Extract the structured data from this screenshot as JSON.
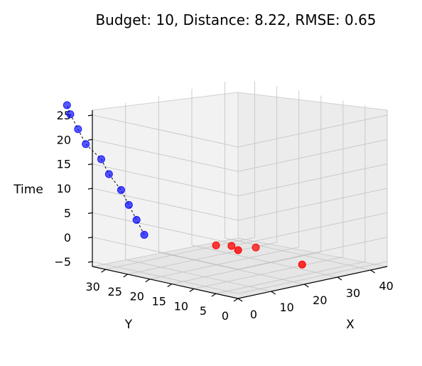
{
  "chart_data": {
    "type": "scatter",
    "title": "Budget: 10, Distance: 8.22, RMSE: 0.65",
    "xlabel": "X",
    "ylabel": "Y",
    "zlabel": "Time",
    "xticks": [
      "0",
      "10",
      "20",
      "30",
      "40"
    ],
    "yticks": [
      "0",
      "5",
      "10",
      "15",
      "20",
      "25",
      "30"
    ],
    "zticks": [
      "−5",
      "0",
      "5",
      "10",
      "15",
      "20",
      "25"
    ],
    "grid": true,
    "series": [
      {
        "color": "#0000ff",
        "style": "markers connected by dashed black line",
        "points": [
          {
            "x": 13,
            "y": 31,
            "time": -1
          },
          {
            "x": 12,
            "y": 32,
            "time": 2
          },
          {
            "x": 11,
            "y": 33,
            "time": 5
          },
          {
            "x": 10,
            "y": 34,
            "time": 8
          },
          {
            "x": 9,
            "y": 36,
            "time": 11
          },
          {
            "x": 8,
            "y": 37,
            "time": 14
          },
          {
            "x": 6,
            "y": 39,
            "time": 17
          },
          {
            "x": 5,
            "y": 40,
            "time": 20
          },
          {
            "x": 4,
            "y": 41,
            "time": 23
          },
          {
            "x": 3,
            "y": 41,
            "time": 25
          }
        ]
      },
      {
        "color": "#ff0000",
        "style": "markers",
        "points": [
          {
            "x": 30,
            "y": 8,
            "time": -5
          },
          {
            "x": 28,
            "y": 17,
            "time": -3
          },
          {
            "x": 22,
            "y": 18,
            "time": -2
          },
          {
            "x": 20,
            "y": 15,
            "time": -2
          },
          {
            "x": 20,
            "y": 20,
            "time": -2
          }
        ]
      }
    ]
  }
}
